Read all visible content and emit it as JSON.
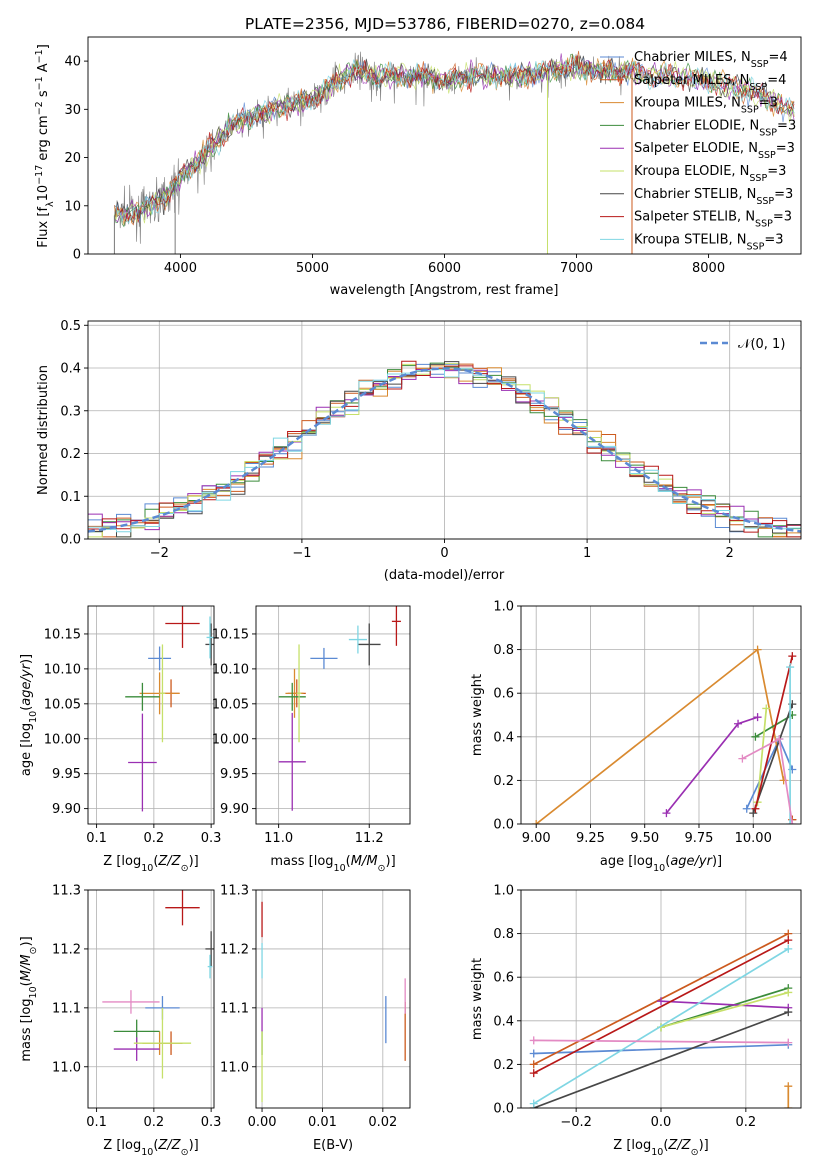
{
  "title": "PLATE=2356, MJD=53786, FIBERID=0270, z=0.084",
  "models": [
    {
      "name": "Chabrier MILES",
      "nssp": "4",
      "color": "#5b8ad3"
    },
    {
      "name": "Salpeter MILES",
      "nssp": "4",
      "color": "#cc5a1e"
    },
    {
      "name": "Kroupa MILES",
      "nssp": "3",
      "color": "#d98a30"
    },
    {
      "name": "Chabrier ELODIE",
      "nssp": "3",
      "color": "#3b8c3b"
    },
    {
      "name": "Salpeter ELODIE",
      "nssp": "3",
      "color": "#9a2fb2"
    },
    {
      "name": "Kroupa ELODIE",
      "nssp": "3",
      "color": "#c6e06a"
    },
    {
      "name": "Chabrier STELIB",
      "nssp": "3",
      "color": "#474747"
    },
    {
      "name": "Salpeter STELIB",
      "nssp": "3",
      "color": "#b81818"
    },
    {
      "name": "Kroupa STELIB",
      "nssp": "3",
      "color": "#7fd6e3"
    }
  ],
  "legend_suffix": "N",
  "legend_sub": "SSP",
  "chart_data": [
    {
      "type": "line",
      "panel": "spectrum",
      "xlabel": "wavelength [Angstrom, rest frame]",
      "ylabel": "Flux [f_λ 10^-17 erg cm^-2 s^-1 A^-1]",
      "xlim": [
        3300,
        8700
      ],
      "ylim": [
        0,
        45
      ],
      "xticks": [
        "4000",
        "5000",
        "6000",
        "7000",
        "8000"
      ],
      "yticks": [
        "0",
        "10",
        "20",
        "30",
        "40"
      ],
      "continuum": [
        [
          3500,
          8
        ],
        [
          3700,
          9
        ],
        [
          3900,
          12
        ],
        [
          4000,
          16
        ],
        [
          4200,
          21
        ],
        [
          4400,
          27
        ],
        [
          4600,
          29
        ],
        [
          4800,
          31
        ],
        [
          5000,
          32
        ],
        [
          5200,
          36
        ],
        [
          5300,
          38
        ],
        [
          5500,
          37
        ],
        [
          5800,
          37
        ],
        [
          6000,
          36
        ],
        [
          6200,
          37
        ],
        [
          6400,
          37
        ],
        [
          6600,
          37
        ],
        [
          6800,
          38
        ],
        [
          7000,
          39
        ],
        [
          7200,
          38
        ],
        [
          7400,
          38
        ],
        [
          7600,
          37
        ],
        [
          8000,
          36
        ],
        [
          8300,
          34
        ],
        [
          8600,
          30
        ]
      ],
      "spectrum_range": [
        3500,
        7420
      ],
      "model_range": [
        3500,
        8650
      ],
      "dropouts": [
        3500,
        3960,
        6780,
        7420
      ],
      "grid": false,
      "legend": "right"
    },
    {
      "type": "histogram",
      "panel": "residuals",
      "xlabel": "(data-model)/error",
      "ylabel": "Normed distribution",
      "xlim": [
        -2.5,
        2.5
      ],
      "ylim": [
        0,
        0.51
      ],
      "xticks": [
        "−2",
        "−1",
        "0",
        "1",
        "2"
      ],
      "yticks": [
        "0.0",
        "0.1",
        "0.2",
        "0.3",
        "0.4",
        "0.5"
      ],
      "bin_width": 0.1,
      "reference_label": "𝒩(0, 1)",
      "grid": true,
      "legend": "top-right"
    },
    {
      "type": "scatter",
      "panel": "age-vs-Z",
      "xlabel": "Z [log10(Z/Z⊙)]",
      "ylabel": "age [log10(age/yr)]",
      "xlim": [
        0.085,
        0.305
      ],
      "ylim": [
        9.878,
        10.19
      ],
      "xticks": [
        "0.1",
        "0.2",
        "0.3"
      ],
      "yticks": [
        "9.90",
        "9.95",
        "10.00",
        "10.05",
        "10.10",
        "10.15"
      ],
      "points": [
        {
          "model": 0,
          "x": 0.21,
          "y": 10.115,
          "xerr": 0.02,
          "yerr": 0.017
        },
        {
          "model": 1,
          "x": 0.23,
          "y": 10.065,
          "xerr": 0.015,
          "yerr": 0.02
        },
        {
          "model": 2,
          "x": 0.21,
          "y": 10.065,
          "xerr": 0.035,
          "yerr": 0.03
        },
        {
          "model": 3,
          "x": 0.18,
          "y": 10.06,
          "xerr": 0.03,
          "yerr": 0.02
        },
        {
          "model": 4,
          "x": 0.18,
          "y": 9.966,
          "xerr": 0.025,
          "yerr": 0.07
        },
        {
          "model": 5,
          "x": 0.215,
          "y": 10.065,
          "xerr": 0.005,
          "yerr": 0.07
        },
        {
          "model": 6,
          "x": 0.3,
          "y": 10.135,
          "xerr": 0.01,
          "yerr": 0.03
        },
        {
          "model": 7,
          "x": 0.25,
          "y": 10.165,
          "xerr": 0.03,
          "yerr": 0.035
        },
        {
          "model": 8,
          "x": 0.298,
          "y": 10.145,
          "xerr": 0.006,
          "yerr": 0.03
        }
      ]
    },
    {
      "type": "scatter",
      "panel": "age-vs-mass",
      "xlabel": "mass [log10(M/M⊙)]",
      "ylabel": "",
      "xlim": [
        10.95,
        11.29
      ],
      "ylim": [
        9.878,
        10.19
      ],
      "xticks": [
        "11.0",
        "11.2"
      ],
      "yticks": [
        "9.90",
        "9.95",
        "10.00",
        "10.05",
        "10.10",
        "10.15"
      ],
      "points": [
        {
          "model": 0,
          "x": 11.1,
          "y": 10.115,
          "xerr": 0.03,
          "yerr": 0.015
        },
        {
          "model": 1,
          "x": 11.04,
          "y": 10.065,
          "xerr": 0.02,
          "yerr": 0.02
        },
        {
          "model": 2,
          "x": 11.035,
          "y": 10.065,
          "xerr": 0.02,
          "yerr": 0.035
        },
        {
          "model": 3,
          "x": 11.03,
          "y": 10.06,
          "xerr": 0.03,
          "yerr": 0.02
        },
        {
          "model": 4,
          "x": 11.03,
          "y": 9.967,
          "xerr": 0.03,
          "yerr": 0.07
        },
        {
          "model": 5,
          "x": 11.045,
          "y": 10.065,
          "xerr": 0.005,
          "yerr": 0.07
        },
        {
          "model": 6,
          "x": 11.2,
          "y": 10.135,
          "xerr": 0.025,
          "yerr": 0.03
        },
        {
          "model": 7,
          "x": 11.26,
          "y": 10.168,
          "xerr": 0.01,
          "yerr": 0.035
        },
        {
          "model": 8,
          "x": 11.175,
          "y": 10.142,
          "xerr": 0.02,
          "yerr": 0.02
        }
      ]
    },
    {
      "type": "line",
      "panel": "weight-vs-age",
      "xlabel": "age [log10(age/yr)]",
      "ylabel": "mass weight",
      "xlim": [
        8.93,
        10.22
      ],
      "ylim": [
        0,
        1.0
      ],
      "xticks": [
        "9.00",
        "9.25",
        "9.50",
        "9.75",
        "10.00"
      ],
      "yticks": [
        "0.0",
        "0.2",
        "0.4",
        "0.6",
        "0.8",
        "1.0"
      ],
      "grid": true,
      "series": [
        {
          "model": 0,
          "points": [
            [
              9.97,
              0.07
            ],
            [
              10.12,
              0.39
            ],
            [
              10.18,
              0.25
            ]
          ]
        },
        {
          "model": 1,
          "points": [
            [
              10.18,
              0.02
            ],
            [
              10.18,
              0.02
            ]
          ]
        },
        {
          "model": 2,
          "points": [
            [
              9.0,
              0.0
            ],
            [
              10.02,
              0.8
            ],
            [
              10.14,
              0.2
            ]
          ]
        },
        {
          "model": 3,
          "points": [
            [
              10.01,
              0.4
            ],
            [
              10.18,
              0.5
            ]
          ]
        },
        {
          "model": 4,
          "points": [
            [
              9.6,
              0.05
            ],
            [
              9.93,
              0.46
            ],
            [
              10.02,
              0.49
            ]
          ]
        },
        {
          "model": 5,
          "points": [
            [
              10.02,
              0.1
            ],
            [
              10.06,
              0.53
            ]
          ]
        },
        {
          "model": 6,
          "points": [
            [
              10.0,
              0.05
            ],
            [
              10.18,
              0.55
            ]
          ]
        },
        {
          "model": 7,
          "points": [
            [
              10.01,
              0.07
            ],
            [
              10.18,
              0.77
            ]
          ]
        },
        {
          "model": 8,
          "points": [
            [
              10.17,
              0.0
            ],
            [
              10.17,
              0.72
            ]
          ]
        },
        {
          "model": 9,
          "points": [
            [
              9.95,
              0.3
            ],
            [
              10.12,
              0.39
            ],
            [
              10.18,
              0.0
            ]
          ]
        }
      ]
    },
    {
      "type": "scatter",
      "panel": "mass-vs-Z",
      "xlabel": "Z [log10(Z/Z⊙)]",
      "ylabel": "mass [log10(M/M⊙)]",
      "xlim": [
        0.085,
        0.305
      ],
      "ylim": [
        10.93,
        11.3
      ],
      "xticks": [
        "0.1",
        "0.2",
        "0.3"
      ],
      "yticks": [
        "11.0",
        "11.1",
        "11.2",
        "11.3"
      ],
      "points": [
        {
          "model": 0,
          "x": 0.215,
          "y": 11.1,
          "xerr": 0.03,
          "yerr": 0.02
        },
        {
          "model": 1,
          "x": 0.23,
          "y": 11.04,
          "xerr": 0.02,
          "yerr": 0.02
        },
        {
          "model": 2,
          "x": 0.21,
          "y": 11.04,
          "xerr": 0.03,
          "yerr": 0.02
        },
        {
          "model": 3,
          "x": 0.17,
          "y": 11.06,
          "xerr": 0.04,
          "yerr": 0.02
        },
        {
          "model": 4,
          "x": 0.17,
          "y": 11.03,
          "xerr": 0.04,
          "yerr": 0.02
        },
        {
          "model": 5,
          "x": 0.215,
          "y": 11.04,
          "xerr": 0.05,
          "yerr": 0.06
        },
        {
          "model": 6,
          "x": 0.3,
          "y": 11.2,
          "xerr": 0.01,
          "yerr": 0.03
        },
        {
          "model": 7,
          "x": 0.25,
          "y": 11.27,
          "xerr": 0.03,
          "yerr": 0.03
        },
        {
          "model": 8,
          "x": 0.298,
          "y": 11.17,
          "xerr": 0.004,
          "yerr": 0.02
        },
        {
          "model": 9,
          "x": 0.16,
          "y": 11.11,
          "xerr": 0.05,
          "yerr": 0.02
        }
      ]
    },
    {
      "type": "scatter",
      "panel": "mass-vs-EBV",
      "xlabel": "E(B-V)",
      "ylabel": "",
      "xlim": [
        -0.001,
        0.0245
      ],
      "ylim": [
        10.93,
        11.3
      ],
      "xticks": [
        "0.00",
        "0.01",
        "0.02"
      ],
      "yticks": [
        "11.0",
        "11.1",
        "11.2",
        "11.3"
      ],
      "points": [
        {
          "model": 0,
          "x": 0.0205,
          "y": 11.08,
          "xerr": 0,
          "yerr": 0.04
        },
        {
          "model": 1,
          "x": 0.0237,
          "y": 11.06,
          "xerr": 0,
          "yerr": 0.05
        },
        {
          "model": 3,
          "x": 0.0,
          "y": 11.04,
          "xerr": 0,
          "yerr": 0.02
        },
        {
          "model": 4,
          "x": 0.0,
          "y": 11.08,
          "xerr": 0,
          "yerr": 0.02
        },
        {
          "model": 5,
          "x": 0.0,
          "y": 11.0,
          "xerr": 0,
          "yerr": 0.06
        },
        {
          "model": 7,
          "x": 0.0,
          "y": 11.25,
          "xerr": 0,
          "yerr": 0.03
        },
        {
          "model": 8,
          "x": 0.0,
          "y": 11.18,
          "xerr": 0,
          "yerr": 0.03
        },
        {
          "model": 9,
          "x": 0.0237,
          "y": 11.12,
          "xerr": 0,
          "yerr": 0.03
        }
      ]
    },
    {
      "type": "line",
      "panel": "weight-vs-Z",
      "xlabel": "Z [log10(Z/Z⊙)]",
      "ylabel": "mass weight",
      "xlim": [
        -0.33,
        0.33
      ],
      "ylim": [
        0,
        1.0
      ],
      "xticks": [
        "−0.2",
        "0.0",
        "0.2"
      ],
      "yticks": [
        "0.0",
        "0.2",
        "0.4",
        "0.6",
        "0.8",
        "1.0"
      ],
      "grid": true,
      "series": [
        {
          "model": 0,
          "points": [
            [
              -0.3,
              0.25
            ],
            [
              0.3,
              0.29
            ]
          ]
        },
        {
          "model": 1,
          "points": [
            [
              -0.3,
              0.2
            ],
            [
              0.3,
              0.8
            ]
          ]
        },
        {
          "model": 2,
          "points": [
            [
              0.3,
              0.0
            ],
            [
              0.3,
              0.1
            ]
          ]
        },
        {
          "model": 3,
          "points": [
            [
              0.0,
              0.37
            ],
            [
              0.3,
              0.55
            ]
          ]
        },
        {
          "model": 4,
          "points": [
            [
              0.0,
              0.49
            ],
            [
              0.3,
              0.46
            ]
          ]
        },
        {
          "model": 5,
          "points": [
            [
              0.0,
              0.37
            ],
            [
              0.3,
              0.53
            ]
          ]
        },
        {
          "model": 6,
          "points": [
            [
              -0.3,
              0.0
            ],
            [
              0.3,
              0.44
            ]
          ]
        },
        {
          "model": 7,
          "points": [
            [
              -0.3,
              0.16
            ],
            [
              0.3,
              0.77
            ]
          ]
        },
        {
          "model": 8,
          "points": [
            [
              -0.3,
              0.02
            ],
            [
              0.3,
              0.73
            ]
          ]
        },
        {
          "model": 9,
          "points": [
            [
              -0.3,
              0.31
            ],
            [
              0.3,
              0.3
            ]
          ]
        }
      ]
    }
  ],
  "extra_color": "#e38ac3"
}
